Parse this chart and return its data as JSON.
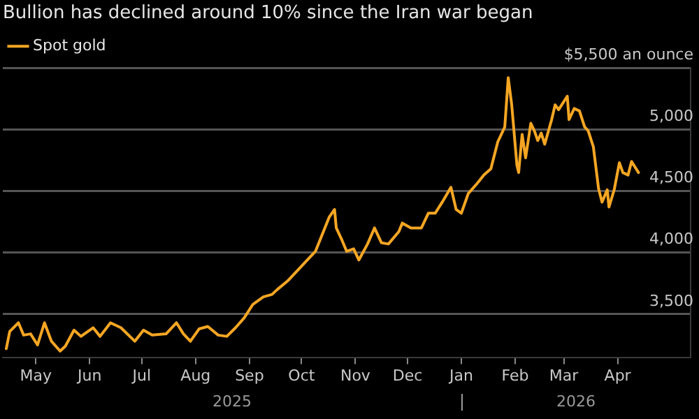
{
  "chart_data": {
    "type": "line",
    "title": "Bullion has declined around 10% since the Iran war began",
    "x": [
      "2025-04-14",
      "2025-04-16",
      "2025-04-21",
      "2025-04-24",
      "2025-04-28",
      "2025-05-02",
      "2025-05-06",
      "2025-05-10",
      "2025-05-15",
      "2025-05-18",
      "2025-05-23",
      "2025-05-27",
      "2025-06-03",
      "2025-06-07",
      "2025-06-13",
      "2025-06-19",
      "2025-06-27",
      "2025-07-02",
      "2025-07-07",
      "2025-07-15",
      "2025-07-21",
      "2025-07-25",
      "2025-07-29",
      "2025-08-03",
      "2025-08-08",
      "2025-08-14",
      "2025-08-19",
      "2025-08-24",
      "2025-08-29",
      "2025-09-03",
      "2025-09-09",
      "2025-09-14",
      "2025-09-17",
      "2025-09-23",
      "2025-10-01",
      "2025-10-09",
      "2025-10-13",
      "2025-10-17",
      "2025-10-20",
      "2025-10-21",
      "2025-10-24",
      "2025-10-27",
      "2025-10-31",
      "2025-11-03",
      "2025-11-08",
      "2025-11-12",
      "2025-11-16",
      "2025-11-20",
      "2025-11-26",
      "2025-11-28",
      "2025-12-03",
      "2025-12-09",
      "2025-12-13",
      "2025-12-17",
      "2025-12-21",
      "2025-12-26",
      "2025-12-29",
      "2026-01-01",
      "2026-01-05",
      "2026-01-10",
      "2026-01-14",
      "2026-01-18",
      "2026-01-22",
      "2026-01-26",
      "2026-01-28",
      "2026-01-30",
      "2026-02-02",
      "2026-02-03",
      "2026-02-05",
      "2026-02-07",
      "2026-02-10",
      "2026-02-12",
      "2026-02-14",
      "2026-02-16",
      "2026-02-18",
      "2026-02-22",
      "2026-02-24",
      "2026-02-26",
      "2026-03-03",
      "2026-03-04",
      "2026-03-07",
      "2026-03-10",
      "2026-03-13",
      "2026-03-15",
      "2026-03-18",
      "2026-03-21",
      "2026-03-23",
      "2026-03-26",
      "2026-03-27",
      "2026-03-30",
      "2026-04-02",
      "2026-04-04",
      "2026-04-07",
      "2026-04-09",
      "2026-04-13"
    ],
    "series": [
      {
        "name": "Spot gold",
        "color": "#f5a623",
        "values": [
          3220,
          3360,
          3430,
          3330,
          3340,
          3250,
          3430,
          3280,
          3200,
          3240,
          3370,
          3320,
          3390,
          3320,
          3430,
          3390,
          3280,
          3370,
          3330,
          3340,
          3430,
          3340,
          3280,
          3380,
          3400,
          3330,
          3320,
          3390,
          3470,
          3580,
          3640,
          3660,
          3700,
          3770,
          3890,
          4010,
          4150,
          4290,
          4350,
          4200,
          4110,
          4010,
          4030,
          3940,
          4070,
          4200,
          4080,
          4070,
          4170,
          4240,
          4200,
          4200,
          4320,
          4320,
          4410,
          4530,
          4350,
          4320,
          4480,
          4560,
          4630,
          4680,
          4900,
          5020,
          5420,
          5200,
          4710,
          4650,
          4960,
          4770,
          5050,
          4990,
          4910,
          4970,
          4880,
          5080,
          5200,
          5160,
          5270,
          5080,
          5170,
          5150,
          5020,
          4990,
          4860,
          4520,
          4410,
          4510,
          4370,
          4510,
          4730,
          4650,
          4630,
          4740,
          4650
        ]
      }
    ],
    "xlim": [
      "2025-04-12",
      "2026-05-13"
    ],
    "xticks": [
      {
        "value": "2025-05-01",
        "label": "May"
      },
      {
        "value": "2025-06-01",
        "label": "Jun"
      },
      {
        "value": "2025-07-01",
        "label": "Jul"
      },
      {
        "value": "2025-08-01",
        "label": "Aug"
      },
      {
        "value": "2025-09-01",
        "label": "Sep"
      },
      {
        "value": "2025-10-01",
        "label": "Oct"
      },
      {
        "value": "2025-11-01",
        "label": "Nov"
      },
      {
        "value": "2025-12-01",
        "label": "Dec"
      },
      {
        "value": "2026-01-01",
        "label": "Jan"
      },
      {
        "value": "2026-02-01",
        "label": "Feb"
      },
      {
        "value": "2026-03-01",
        "label": "Mar"
      },
      {
        "value": "2026-04-01",
        "label": "Apr"
      }
    ],
    "ylim": [
      3150,
      5500
    ],
    "yticks": [
      {
        "value": 3500,
        "label": "3,500"
      },
      {
        "value": 4000,
        "label": "4,000"
      },
      {
        "value": 4500,
        "label": "4,500"
      },
      {
        "value": 5000,
        "label": "5,000"
      },
      {
        "value": 5500,
        "label": "$5,500 an ounce"
      }
    ],
    "annotations": [
      "2025",
      "2026"
    ],
    "grid": "y",
    "legend": "top left",
    "marker": "none",
    "line_style": "solid"
  }
}
